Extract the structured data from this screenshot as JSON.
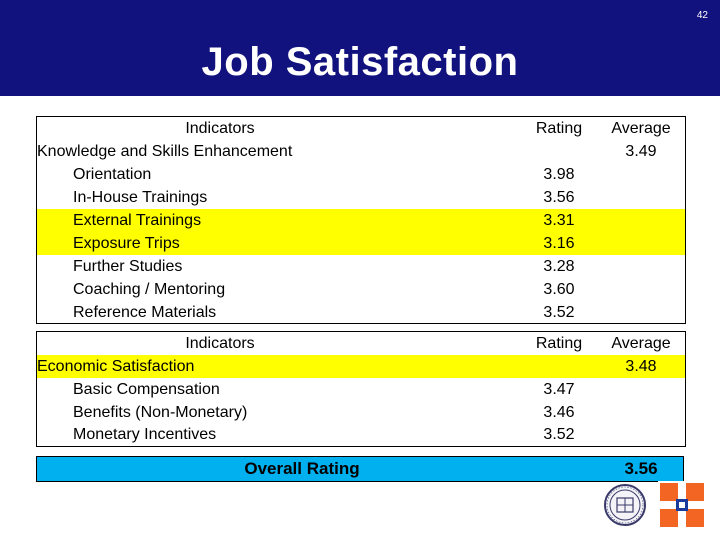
{
  "page_number": "42",
  "title": "Job Satisfaction",
  "colors": {
    "header_bg": "#12127e",
    "highlight": "#ffff00",
    "overall_bg": "#00b0ef",
    "logo_orange": "#f26522",
    "logo_blue": "#1a3a9c"
  },
  "table1": {
    "col_indicators": "Indicators",
    "col_rating": "Rating",
    "col_average": "Average",
    "category": "Knowledge and Skills Enhancement",
    "average": "3.49",
    "rows": [
      {
        "label": "Orientation",
        "rating": "3.98",
        "highlighted": false
      },
      {
        "label": "In-House Trainings",
        "rating": "3.56",
        "highlighted": false
      },
      {
        "label": "External Trainings",
        "rating": "3.31",
        "highlighted": true
      },
      {
        "label": "Exposure Trips",
        "rating": "3.16",
        "highlighted": true
      },
      {
        "label": "Further Studies",
        "rating": "3.28",
        "highlighted": false
      },
      {
        "label": "Coaching / Mentoring",
        "rating": "3.60",
        "highlighted": false
      },
      {
        "label": "Reference Materials",
        "rating": "3.52",
        "highlighted": false
      }
    ]
  },
  "table2": {
    "col_indicators": "Indicators",
    "col_rating": "Rating",
    "col_average": "Average",
    "category": "Economic Satisfaction",
    "average": "3.48",
    "rows": [
      {
        "label": "Basic Compensation",
        "rating": "3.47"
      },
      {
        "label": "Benefits (Non-Monetary)",
        "rating": "3.46"
      },
      {
        "label": "Monetary Incentives",
        "rating": "3.52"
      }
    ]
  },
  "overall": {
    "label": "Overall Rating",
    "value": "3.56"
  },
  "icons": {
    "seal": "university-seal-icon",
    "logo": "cross-logo-icon"
  }
}
